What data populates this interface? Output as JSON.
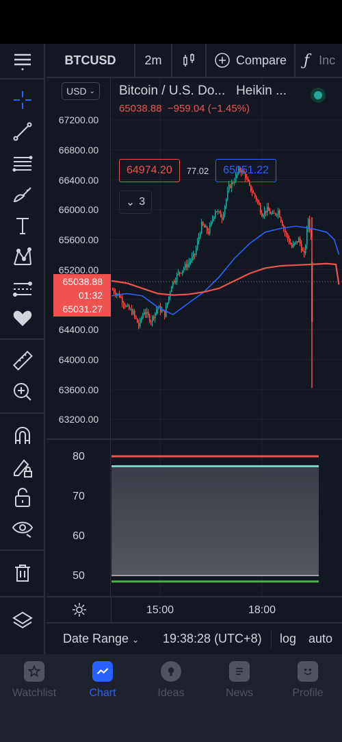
{
  "header": {
    "symbol": "BTCUSD",
    "interval": "2m",
    "compare_label": "Compare",
    "indicators_label": "Inc"
  },
  "toolbar": {
    "tools": [
      "crosshair-icon",
      "trend-line-icon",
      "fib-retracement-icon",
      "brush-icon",
      "text-icon",
      "pattern-icon",
      "prediction-icon",
      "heart-icon",
      "ruler-icon",
      "zoom-in-icon",
      "magnet-icon",
      "lock-drawings-icon",
      "unlock-icon",
      "eye-icon",
      "trash-icon",
      "layers-icon"
    ]
  },
  "legend": {
    "title": "Bitcoin / U.S. Do...",
    "chart_style": "Heikin ...",
    "last_price": "65038.88",
    "change": "−959.04 (−1.45%)",
    "bid": "64974.20",
    "spread": "77.02",
    "ask": "65051.22",
    "indicator_count": "3"
  },
  "price_axis": {
    "currency": "USD",
    "ticks": [
      "67200.00",
      "66800.00",
      "66400.00",
      "66000.00",
      "65600.00",
      "65200.00",
      "64400.00",
      "64000.00",
      "63600.00",
      "63200.00"
    ],
    "current_price": "65038.88",
    "countdown": "01:32",
    "ma_price": "65031.27"
  },
  "oscillator": {
    "ticks": [
      "80",
      "70",
      "60",
      "50"
    ],
    "level_red": 80,
    "level_cyan": 77.5,
    "level_gray": 50,
    "level_green": 48.5
  },
  "time_axis": {
    "ticks": [
      "15:00",
      "18:00"
    ]
  },
  "bottom_controls": {
    "date_range": "Date Range",
    "clock": "19:38:28 (UTC+8)",
    "log": "log",
    "auto": "auto"
  },
  "nav": {
    "items": [
      {
        "label": "Watchlist",
        "icon": "star-icon"
      },
      {
        "label": "Chart",
        "icon": "chart-icon"
      },
      {
        "label": "Ideas",
        "icon": "lightbulb-icon"
      },
      {
        "label": "News",
        "icon": "news-icon"
      },
      {
        "label": "Profile",
        "icon": "smile-icon"
      }
    ],
    "active": "Chart"
  },
  "colors": {
    "background": "#131722",
    "up": "#26a69a",
    "down": "#ef5350",
    "accent": "#2962ff",
    "ma_blue": "#2962ff",
    "ma_red": "#ef5350"
  }
}
